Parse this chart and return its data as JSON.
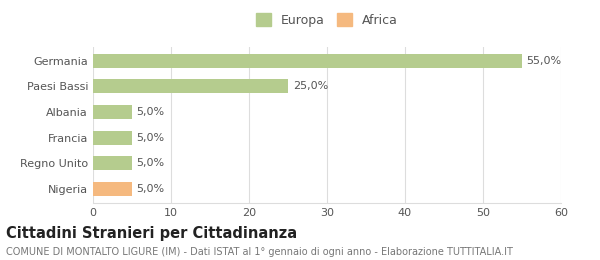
{
  "categories": [
    "Nigeria",
    "Regno Unito",
    "Francia",
    "Albania",
    "Paesi Bassi",
    "Germania"
  ],
  "values": [
    5.0,
    5.0,
    5.0,
    5.0,
    25.0,
    55.0
  ],
  "colors": [
    "#f5b97f",
    "#b5cc8e",
    "#b5cc8e",
    "#b5cc8e",
    "#b5cc8e",
    "#b5cc8e"
  ],
  "labels": [
    "5,0%",
    "5,0%",
    "5,0%",
    "5,0%",
    "25,0%",
    "55,0%"
  ],
  "xlim": [
    0,
    60
  ],
  "xticks": [
    0,
    10,
    20,
    30,
    40,
    50,
    60
  ],
  "legend_europa_color": "#b5cc8e",
  "legend_africa_color": "#f5b97f",
  "title": "Cittadini Stranieri per Cittadinanza",
  "subtitle": "COMUNE DI MONTALTO LIGURE (IM) - Dati ISTAT al 1° gennaio di ogni anno - Elaborazione TUTTITALIA.IT",
  "bg_color": "#ffffff",
  "grid_color": "#dddddd",
  "bar_height": 0.55,
  "title_fontsize": 10.5,
  "subtitle_fontsize": 7.0,
  "label_fontsize": 8,
  "tick_fontsize": 8,
  "legend_fontsize": 9
}
